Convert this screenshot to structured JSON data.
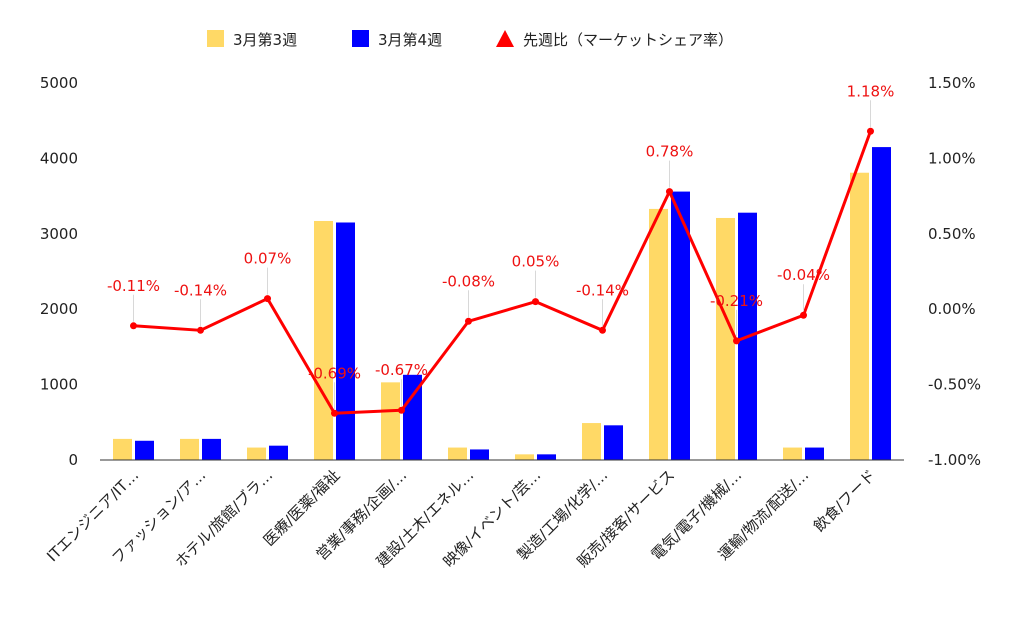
{
  "chart_data": {
    "type": "bar",
    "categories": [
      "ITエンジニア/IT…",
      "ファッション/ア…",
      "ホテル/旅館/ブラ…",
      "医療/医薬/福祉",
      "営業/事務/企画/…",
      "建設/土木/エネル…",
      "映像/イベント/芸…",
      "製造/工場/化学/…",
      "販売/接客/サービス",
      "電気/電子/機械/…",
      "運輸/物流/配送/…",
      "飲食/フード"
    ],
    "series": [
      {
        "name": "3月第3週",
        "kind": "bar",
        "axis": "left",
        "color": "#ffd966",
        "values": [
          280,
          280,
          165,
          3170,
          1030,
          165,
          75,
          490,
          3330,
          3210,
          165,
          3810
        ]
      },
      {
        "name": "3月第4週",
        "kind": "bar",
        "axis": "left",
        "color": "#0000ff",
        "values": [
          255,
          280,
          190,
          3150,
          1130,
          140,
          75,
          460,
          3560,
          3280,
          165,
          4150
        ]
      },
      {
        "name": "先週比（マーケットシェア率）",
        "kind": "line",
        "axis": "right",
        "color": "#ff0000",
        "values": [
          -0.11,
          -0.14,
          0.07,
          -0.69,
          -0.67,
          -0.08,
          0.05,
          -0.14,
          0.78,
          -0.21,
          -0.04,
          1.18
        ],
        "labels": [
          "-0.11%",
          "-0.14%",
          "0.07%",
          "-0.69%",
          "-0.67%",
          "-0.08%",
          "0.05%",
          "-0.14%",
          "0.78%",
          "-0.21%",
          "-0.04%",
          "1.18%"
        ]
      }
    ],
    "y_left": {
      "range": [
        0,
        5000
      ],
      "ticks": [
        0,
        1000,
        2000,
        3000,
        4000,
        5000
      ],
      "tick_labels": [
        "0",
        "1000",
        "2000",
        "3000",
        "4000",
        "5000"
      ]
    },
    "y_right": {
      "range": [
        -1.0,
        1.5
      ],
      "ticks": [
        -1.0,
        -0.5,
        0.0,
        0.5,
        1.0,
        1.5
      ],
      "tick_labels": [
        "-1.00%",
        "-0.50%",
        "0.00%",
        "0.50%",
        "1.00%",
        "1.50%"
      ]
    },
    "legend_position": "top-center",
    "grid": false
  }
}
